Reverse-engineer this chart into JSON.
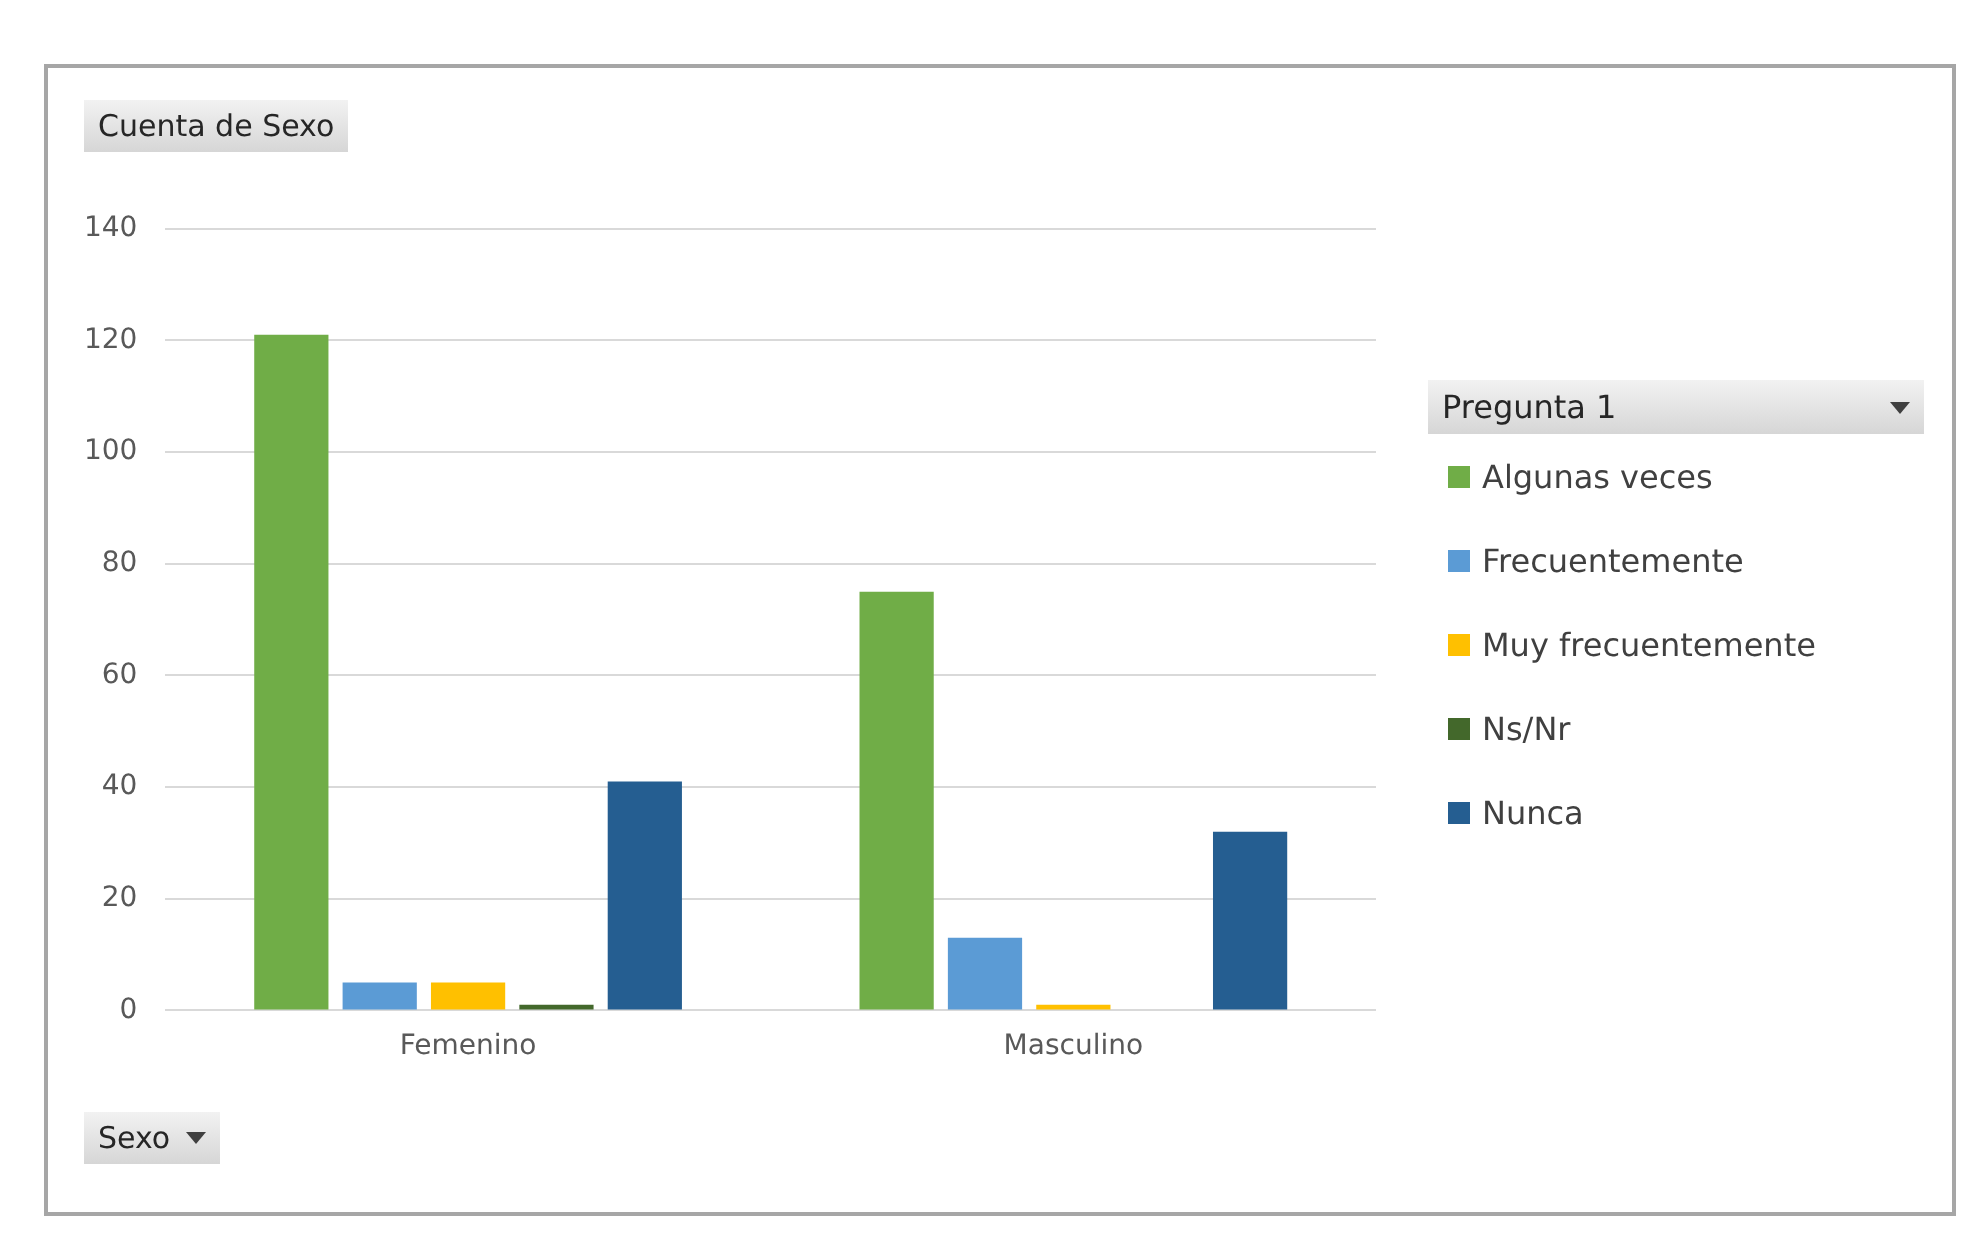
{
  "chart_data": {
    "type": "bar",
    "ylabel": "Cuenta de Sexo",
    "xlabel": "Sexo",
    "legend_title": "Pregunta 1",
    "categories": [
      "Femenino",
      "Masculino"
    ],
    "series": [
      {
        "name": "Algunas veces",
        "color": "#70ad47",
        "values": [
          121,
          75
        ]
      },
      {
        "name": "Frecuentemente",
        "color": "#5b9bd5",
        "values": [
          5,
          13
        ]
      },
      {
        "name": "Muy frecuentemente",
        "color": "#ffc000",
        "values": [
          5,
          1
        ]
      },
      {
        "name": "Ns/Nr",
        "color": "#43682b",
        "values": [
          1,
          null
        ]
      },
      {
        "name": "Nunca",
        "color": "#255e91",
        "values": [
          41,
          32
        ]
      }
    ],
    "ylim": [
      0,
      140
    ],
    "yticks": [
      0,
      20,
      40,
      60,
      80,
      100,
      120,
      140
    ],
    "grid": "y",
    "legend": "right"
  }
}
